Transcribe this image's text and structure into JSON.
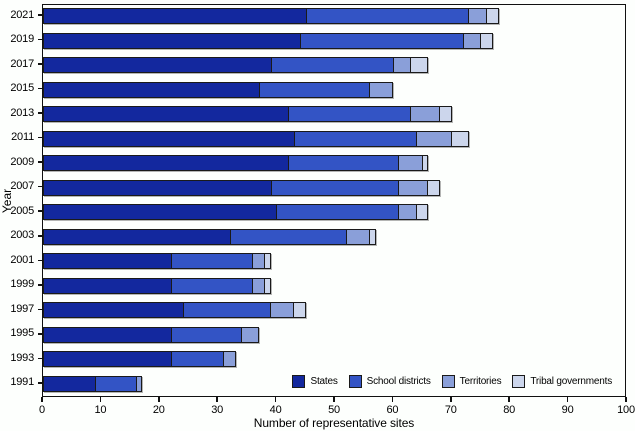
{
  "chart_data": {
    "type": "bar",
    "orientation": "horizontal",
    "stacked": true,
    "title": "",
    "xlabel": "Number of representative sites",
    "ylabel": "Year",
    "xlim": [
      0,
      100
    ],
    "xticks": [
      0,
      10,
      20,
      30,
      40,
      50,
      60,
      70,
      80,
      90,
      100
    ],
    "grid": false,
    "legend_position": "inside-bottom-right",
    "categories": [
      "2021",
      "2019",
      "2017",
      "2015",
      "2013",
      "2011",
      "2009",
      "2007",
      "2005",
      "2003",
      "2001",
      "1999",
      "1997",
      "1995",
      "1993",
      "1991"
    ],
    "series": [
      {
        "name": "States",
        "color": "#13289e",
        "values": [
          45,
          44,
          39,
          37,
          42,
          43,
          42,
          39,
          40,
          32,
          22,
          22,
          24,
          22,
          22,
          9
        ]
      },
      {
        "name": "School districts",
        "color": "#3354c5",
        "values": [
          28,
          28,
          21,
          19,
          21,
          21,
          19,
          22,
          21,
          20,
          14,
          14,
          15,
          12,
          9,
          7
        ]
      },
      {
        "name": "Territories",
        "color": "#8a9fd9",
        "values": [
          3,
          3,
          3,
          4,
          5,
          6,
          4,
          5,
          3,
          4,
          2,
          2,
          4,
          3,
          2,
          1
        ]
      },
      {
        "name": "Tribal governments",
        "color": "#ccd6ec",
        "values": [
          2,
          2,
          3,
          0,
          2,
          3,
          1,
          2,
          2,
          1,
          1,
          1,
          2,
          0,
          0,
          0
        ]
      }
    ],
    "totals": [
      78,
      77,
      66,
      60,
      70,
      73,
      66,
      68,
      66,
      57,
      39,
      39,
      45,
      37,
      33,
      17
    ]
  },
  "colors": {
    "frame": "#111111",
    "segment_border": "#1a1a1a",
    "background": "#fdfffd"
  }
}
